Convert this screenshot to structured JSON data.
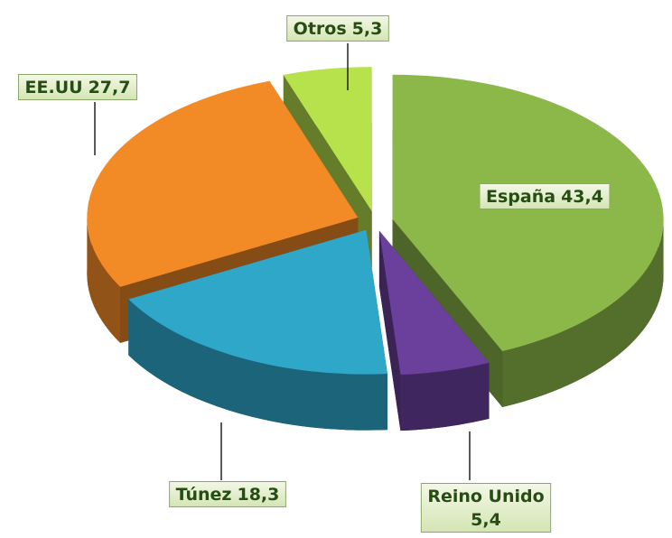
{
  "chart_data": {
    "type": "pie3d",
    "categories": [
      "España",
      "Reino Unido",
      "Túnez",
      "EE.UU",
      "Otros"
    ],
    "values": [
      43.4,
      5.4,
      18.3,
      27.7,
      5.3
    ],
    "value_labels": [
      "43,4",
      "5,4",
      "18,3",
      "27,7",
      "5,3"
    ],
    "colors": [
      "#8cb84a",
      "#6b3f9c",
      "#2ea7c9",
      "#f28a26",
      "#b7e24c"
    ]
  }
}
